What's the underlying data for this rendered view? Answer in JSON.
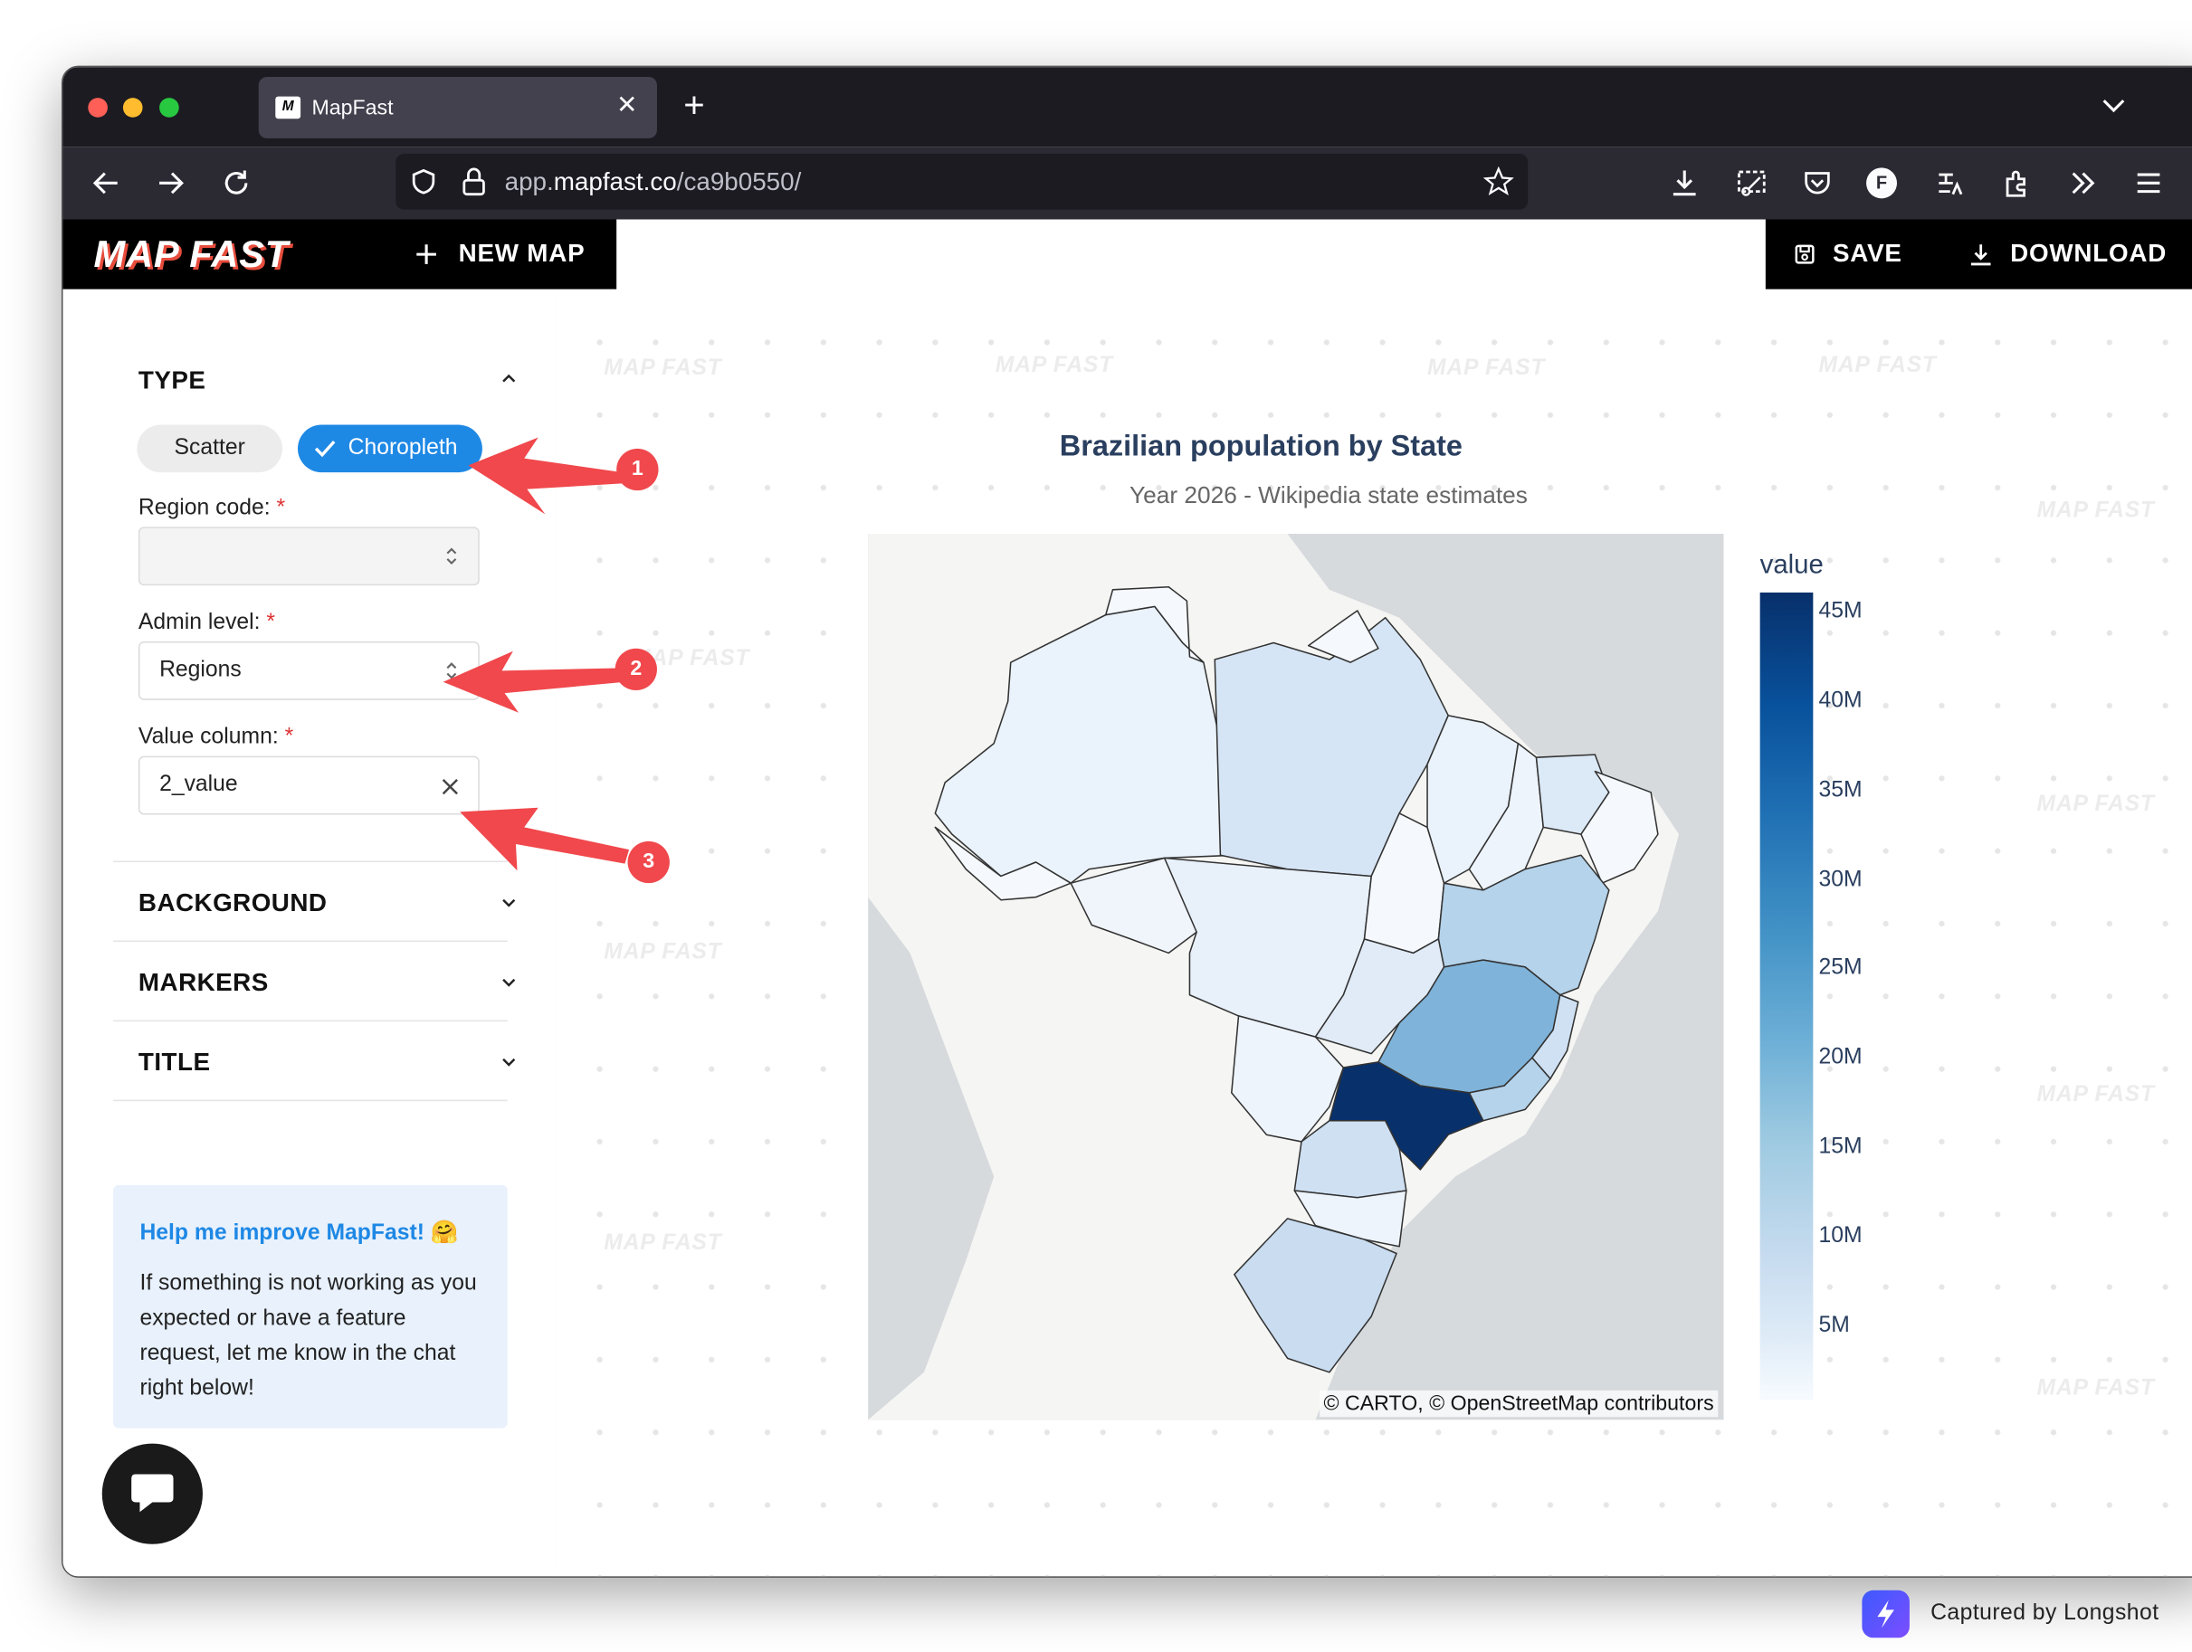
{
  "browser": {
    "tab_title": "MapFast",
    "tab_logo": "M",
    "url_prefix": "app.",
    "url_domain": "mapfast.co",
    "url_path": "/ca9b0550/",
    "profile_letter": "F",
    "icons": [
      "close-icon",
      "plus-icon",
      "chevron-down-icon",
      "back-arrow-icon",
      "forward-arrow-icon",
      "reload-icon",
      "shield-icon",
      "lock-icon",
      "star-icon",
      "download-icon",
      "screenshot-icon",
      "pocket-icon",
      "profile-icon",
      "translate-icon",
      "extensions-icon",
      "overflow-icon",
      "menu-icon"
    ]
  },
  "header": {
    "logo_text": "MAP FAST",
    "new_map_label": "NEW MAP",
    "save_label": "SAVE",
    "download_label": "DOWNLOAD"
  },
  "sidebar": {
    "type_section": {
      "title": "TYPE",
      "options": [
        "Scatter",
        "Choropleth"
      ],
      "selected": "Choropleth"
    },
    "region_code": {
      "label": "Region code:",
      "required_mark": "*",
      "value": ""
    },
    "admin_level": {
      "label": "Admin level:",
      "required_mark": "*",
      "value": "Regions"
    },
    "value_column": {
      "label": "Value column:",
      "required_mark": "*",
      "value": "2_value"
    },
    "sections": [
      "BACKGROUND",
      "MARKERS",
      "TITLE"
    ],
    "help": {
      "title": "Help me improve MapFast! 🤗",
      "body": "If something is not working as you expected or have a feature request, let me know in the chat right below!"
    }
  },
  "annotations": [
    "1",
    "2",
    "3"
  ],
  "watermark_text": "MAP FAST",
  "map": {
    "title": "Brazilian population by State",
    "subtitle": "Year 2026 - Wikipedia state estimates",
    "attribution": "© CARTO, © OpenStreetMap contributors",
    "colorbar_title": "value",
    "colorbar_ticks": [
      "45M",
      "40M",
      "35M",
      "30M",
      "25M",
      "20M",
      "15M",
      "10M",
      "5M"
    ],
    "colorscale": [
      "#f7fbff",
      "#deebf7",
      "#c6dbef",
      "#9ecae1",
      "#6baed6",
      "#4292c6",
      "#2171b5",
      "#08519c",
      "#08306b"
    ]
  },
  "capture_badge": "Captured by Longshot",
  "colors": {
    "accent": "#1e88e5",
    "annotation": "#f0484c",
    "header_bg": "#000000",
    "chart_title": "#2a3f5f"
  }
}
